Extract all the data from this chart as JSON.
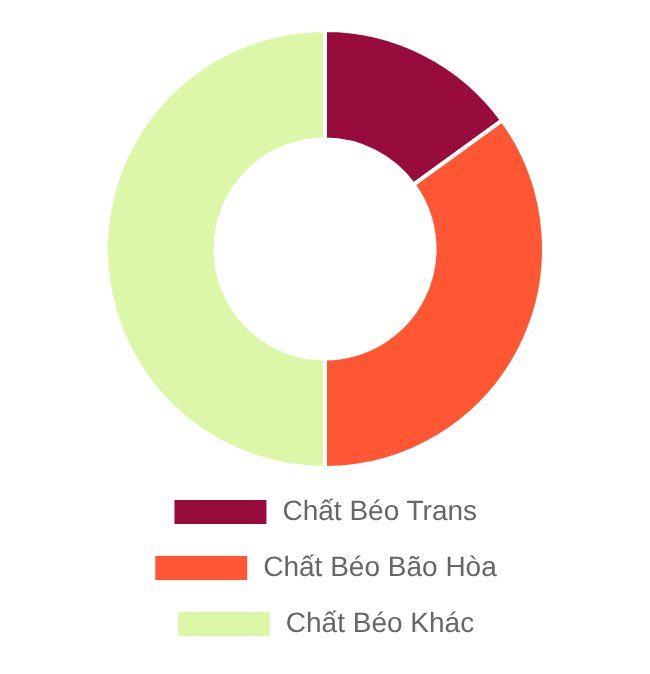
{
  "chart_data": {
    "type": "donut",
    "categories": [
      "Chất Béo Trans",
      "Chất Béo Bão Hòa",
      "Chất Béo Khác"
    ],
    "values": [
      15,
      35,
      50
    ],
    "colors": [
      "#970c3c",
      "#ff5733",
      "#dcf7a8"
    ],
    "legend": "bottom"
  }
}
